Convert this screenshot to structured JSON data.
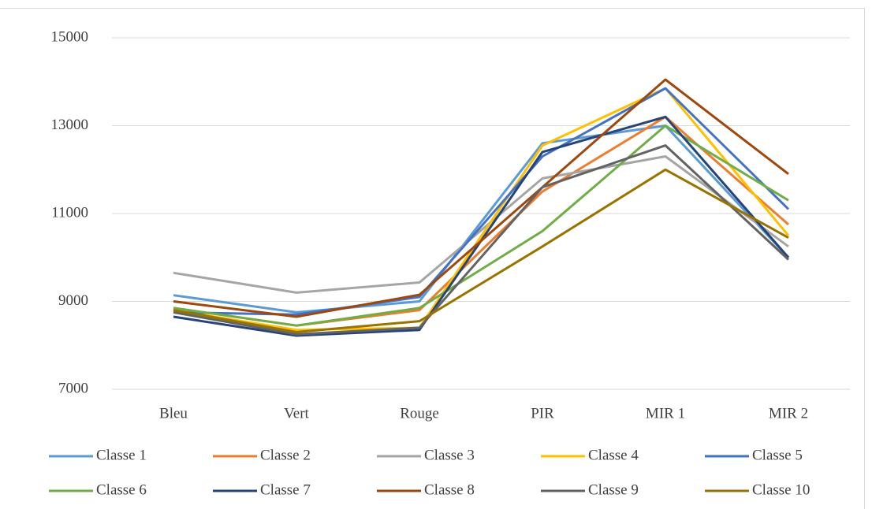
{
  "chart_data": {
    "type": "line",
    "categories": [
      "Bleu",
      "Vert",
      "Rouge",
      "PIR",
      "MIR 1",
      "MIR 2"
    ],
    "series": [
      {
        "name": "Classe 1",
        "color": "#5b9bd5",
        "values": [
          9140,
          8750,
          9000,
          12600,
          13000,
          10000
        ]
      },
      {
        "name": "Classe 2",
        "color": "#ed7d31",
        "values": [
          8850,
          8450,
          8800,
          11500,
          13200,
          10750
        ]
      },
      {
        "name": "Classe 3",
        "color": "#a5a5a5",
        "values": [
          9650,
          9200,
          9430,
          11800,
          12300,
          10250
        ]
      },
      {
        "name": "Classe 4",
        "color": "#ffc000",
        "values": [
          8800,
          8350,
          8400,
          12550,
          13850,
          10500
        ]
      },
      {
        "name": "Classe 5",
        "color": "#4472c4",
        "values": [
          8750,
          8700,
          9100,
          12300,
          13850,
          11100
        ]
      },
      {
        "name": "Classe 6",
        "color": "#70ad47",
        "values": [
          8850,
          8450,
          8850,
          10600,
          13000,
          11300
        ]
      },
      {
        "name": "Classe 7",
        "color": "#264478",
        "values": [
          8650,
          8220,
          8350,
          12400,
          13200,
          10000
        ]
      },
      {
        "name": "Classe 8",
        "color": "#9e480e",
        "values": [
          9000,
          8650,
          9150,
          11600,
          14050,
          11900
        ]
      },
      {
        "name": "Classe 9",
        "color": "#636363",
        "values": [
          8750,
          8250,
          8400,
          11600,
          12550,
          9950
        ]
      },
      {
        "name": "Classe 10",
        "color": "#997300",
        "values": [
          8800,
          8300,
          8550,
          10250,
          12000,
          10450
        ]
      }
    ],
    "ylim": [
      7000,
      15000
    ],
    "yticks": [
      7000,
      9000,
      11000,
      13000,
      15000
    ],
    "grid": true
  }
}
